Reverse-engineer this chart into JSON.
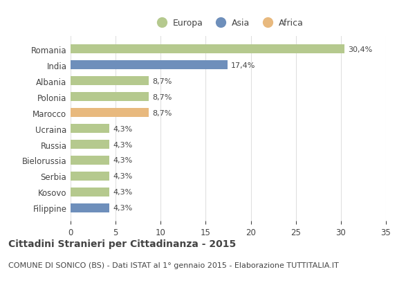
{
  "countries": [
    "Romania",
    "India",
    "Albania",
    "Polonia",
    "Marocco",
    "Ucraina",
    "Russia",
    "Bielorussia",
    "Serbia",
    "Kosovo",
    "Filippine"
  ],
  "values": [
    30.4,
    17.4,
    8.7,
    8.7,
    8.7,
    4.3,
    4.3,
    4.3,
    4.3,
    4.3,
    4.3
  ],
  "labels": [
    "30,4%",
    "17,4%",
    "8,7%",
    "8,7%",
    "8,7%",
    "4,3%",
    "4,3%",
    "4,3%",
    "4,3%",
    "4,3%",
    "4,3%"
  ],
  "continents": [
    "Europa",
    "Asia",
    "Europa",
    "Europa",
    "Africa",
    "Europa",
    "Europa",
    "Europa",
    "Europa",
    "Europa",
    "Asia"
  ],
  "colors": {
    "Europa": "#b5c98e",
    "Asia": "#6e8fbb",
    "Africa": "#e8b97e"
  },
  "legend_entries": [
    "Europa",
    "Asia",
    "Africa"
  ],
  "xlim": [
    0,
    35
  ],
  "xticks": [
    0,
    5,
    10,
    15,
    20,
    25,
    30,
    35
  ],
  "title": "Cittadini Stranieri per Cittadinanza - 2015",
  "subtitle": "COMUNE DI SONICO (BS) - Dati ISTAT al 1° gennaio 2015 - Elaborazione TUTTITALIA.IT",
  "title_fontsize": 10,
  "subtitle_fontsize": 8,
  "label_fontsize": 8,
  "tick_fontsize": 8.5,
  "legend_fontsize": 9,
  "bar_height": 0.55,
  "background_color": "#ffffff",
  "grid_color": "#e0e0e0",
  "text_color": "#444444"
}
